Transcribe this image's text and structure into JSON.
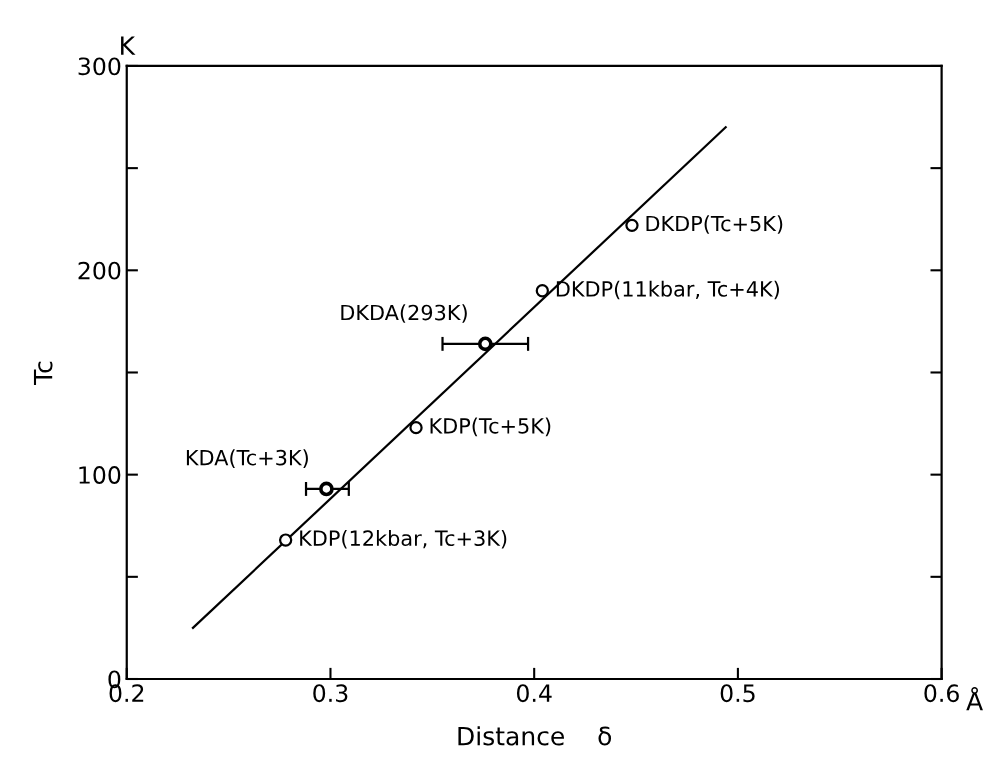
{
  "chart_data": {
    "type": "scatter",
    "xlabel": "Distance    δ",
    "ylabel": "Tc",
    "xlim": [
      0.2,
      0.6
    ],
    "xticks": [
      0.2,
      0.3,
      0.4,
      0.5,
      0.6
    ],
    "ylim": [
      0,
      300
    ],
    "yticks": [
      0,
      {
        "value": 50,
        "label": null
      },
      100,
      {
        "value": 150,
        "label": null
      },
      200,
      {
        "value": 250,
        "label": null
      },
      300
    ],
    "grid": false,
    "legend": false,
    "marker": "circle",
    "series": [
      {
        "type": "line",
        "color": "#000000",
        "x": [
          0.2325,
          0.494
        ],
        "values": [
          25,
          270
        ],
        "marker": "none",
        "line_style": "solid"
      },
      {
        "color": "#000000",
        "x": [
          0.278,
          0.298,
          0.342,
          0.376,
          0.404,
          0.448
        ],
        "values": [
          68,
          93,
          123,
          164,
          190,
          222
        ],
        "xerrors": [
          null,
          [
            0.288,
            0.309
          ],
          null,
          [
            0.355,
            0.397
          ],
          null,
          null
        ]
      }
    ],
    "annotations": [
      {
        "text": "KDP(12kbar, Tc+3K)",
        "x": 0.278,
        "y": 68
      },
      {
        "text": "KDA(Tc+3K)",
        "x": 0.298,
        "y": 93
      },
      {
        "text": "KDP(Tc+5K)",
        "x": 0.342,
        "y": 123
      },
      {
        "text": "DKDA(293K)",
        "x": 0.376,
        "y": 164
      },
      {
        "text": "DKDP(11kbar, Tc+4K)",
        "x": 0.404,
        "y": 190
      },
      {
        "text": "DKDP(Tc+5K)",
        "x": 0.448,
        "y": 222
      },
      "K",
      "Å"
    ]
  }
}
